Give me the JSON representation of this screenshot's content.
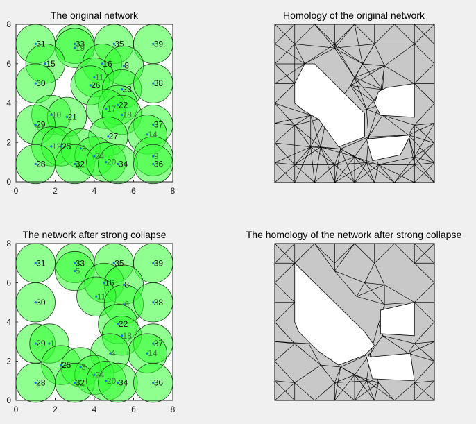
{
  "colors": {
    "background": "#f0f0f0",
    "sensor_fill": "#33ff33",
    "sensor_stroke": "#1f3a1f",
    "complex_fill": "#c8c8c8",
    "hole_fill": "#ffffff",
    "edge": "#000000"
  },
  "chart_data": [
    {
      "type": "scatter",
      "title": "The original network",
      "xlim": [
        0,
        8
      ],
      "ylim": [
        0,
        8
      ],
      "xticks": [
        "0",
        "2",
        "4",
        "6",
        "8"
      ],
      "yticks": [
        "0",
        "2",
        "4",
        "6",
        "8"
      ],
      "sensing_radius": 1,
      "nodes": [
        {
          "id": "31",
          "x": 1.0,
          "y": 7.0
        },
        {
          "id": "33",
          "x": 3.0,
          "y": 7.0
        },
        {
          "id": "19",
          "x": 3.0,
          "y": 6.8,
          "faint": true
        },
        {
          "id": "35",
          "x": 5.0,
          "y": 7.0
        },
        {
          "id": "39",
          "x": 7.0,
          "y": 7.0
        },
        {
          "id": "15",
          "x": 1.5,
          "y": 6.0
        },
        {
          "id": "16",
          "x": 4.4,
          "y": 6.0
        },
        {
          "id": "8",
          "x": 5.5,
          "y": 5.9
        },
        {
          "id": "30",
          "x": 1.0,
          "y": 5.0
        },
        {
          "id": "11",
          "x": 4.0,
          "y": 5.3,
          "faint": true
        },
        {
          "id": "26",
          "x": 3.8,
          "y": 4.9
        },
        {
          "id": "23",
          "x": 5.4,
          "y": 4.7
        },
        {
          "id": "38",
          "x": 7.0,
          "y": 5.0
        },
        {
          "id": "22",
          "x": 5.2,
          "y": 3.9
        },
        {
          "id": "17",
          "x": 4.6,
          "y": 3.7,
          "faint": true
        },
        {
          "id": "18",
          "x": 5.4,
          "y": 3.4,
          "faint": true
        },
        {
          "id": "10",
          "x": 1.8,
          "y": 3.4,
          "faint": true
        },
        {
          "id": "21",
          "x": 2.6,
          "y": 3.3
        },
        {
          "id": "29",
          "x": 1.0,
          "y": 2.9
        },
        {
          "id": "37",
          "x": 7.0,
          "y": 2.9
        },
        {
          "id": "14",
          "x": 6.7,
          "y": 2.4,
          "faint": true
        },
        {
          "id": "27",
          "x": 4.7,
          "y": 2.3
        },
        {
          "id": "12",
          "x": 1.8,
          "y": 1.8,
          "faint": true
        },
        {
          "id": "25",
          "x": 2.3,
          "y": 1.8
        },
        {
          "id": "3",
          "x": 3.3,
          "y": 1.7,
          "faint": true
        },
        {
          "id": "9",
          "x": 7.0,
          "y": 1.3,
          "faint": true
        },
        {
          "id": "24",
          "x": 4.0,
          "y": 1.3,
          "faint": true
        },
        {
          "id": "28",
          "x": 1.0,
          "y": 0.9
        },
        {
          "id": "32",
          "x": 3.0,
          "y": 0.9
        },
        {
          "id": "20",
          "x": 4.6,
          "y": 1.0,
          "faint": true
        },
        {
          "id": "34",
          "x": 5.2,
          "y": 0.9
        },
        {
          "id": "36",
          "x": 7.0,
          "y": 0.9
        }
      ]
    },
    {
      "type": "diagram",
      "title": "Homology of the original network",
      "xlim": [
        0,
        8
      ],
      "ylim": [
        0,
        8
      ],
      "holes": [
        [
          [
            1.0,
            5.0
          ],
          [
            1.5,
            6.0
          ],
          [
            2.0,
            6.0
          ],
          [
            3.0,
            5.0
          ],
          [
            4.5,
            3.5
          ],
          [
            4.5,
            2.3
          ],
          [
            3.2,
            1.8
          ],
          [
            2.2,
            3.2
          ],
          [
            1.5,
            3.6
          ],
          [
            1.0,
            4.0
          ]
        ],
        [
          [
            5.2,
            4.6
          ],
          [
            5.6,
            4.8
          ],
          [
            7.0,
            5.0
          ],
          [
            7.0,
            3.3
          ],
          [
            5.3,
            3.4
          ],
          [
            5.0,
            4.0
          ]
        ],
        [
          [
            4.6,
            2.2
          ],
          [
            6.8,
            2.4
          ],
          [
            6.3,
            1.4
          ],
          [
            4.9,
            1.1
          ]
        ]
      ]
    },
    {
      "type": "scatter",
      "title": "The network after strong collapse",
      "xlim": [
        0,
        8
      ],
      "ylim": [
        0,
        8
      ],
      "xticks": [
        "0",
        "2",
        "4",
        "6",
        "8"
      ],
      "yticks": [
        "0",
        "2",
        "4",
        "6",
        "8"
      ],
      "sensing_radius": 1,
      "nodes": [
        {
          "id": "31",
          "x": 1.0,
          "y": 7.0
        },
        {
          "id": "33",
          "x": 3.0,
          "y": 7.0
        },
        {
          "id": "5",
          "x": 3.0,
          "y": 6.6,
          "faint": true
        },
        {
          "id": "35",
          "x": 5.0,
          "y": 7.0
        },
        {
          "id": "39",
          "x": 7.0,
          "y": 7.0
        },
        {
          "id": "16",
          "x": 4.5,
          "y": 6.0
        },
        {
          "id": "8",
          "x": 5.5,
          "y": 5.9
        },
        {
          "id": "30",
          "x": 1.0,
          "y": 5.0
        },
        {
          "id": "11",
          "x": 4.1,
          "y": 5.3,
          "faint": true
        },
        {
          "id": "6",
          "x": 5.5,
          "y": 4.9,
          "faint": true
        },
        {
          "id": "38",
          "x": 7.0,
          "y": 5.0
        },
        {
          "id": "22",
          "x": 5.2,
          "y": 3.9
        },
        {
          "id": "18",
          "x": 5.4,
          "y": 3.3,
          "faint": true
        },
        {
          "id": "29",
          "x": 1.0,
          "y": 2.9
        },
        {
          "id": "1",
          "x": 1.7,
          "y": 2.9,
          "faint": true
        },
        {
          "id": "37",
          "x": 7.0,
          "y": 2.9
        },
        {
          "id": "14",
          "x": 6.7,
          "y": 2.4,
          "faint": true
        },
        {
          "id": "4",
          "x": 4.8,
          "y": 2.4,
          "faint": true
        },
        {
          "id": "25",
          "x": 2.3,
          "y": 1.8
        },
        {
          "id": "3",
          "x": 3.3,
          "y": 1.7,
          "faint": true
        },
        {
          "id": "24",
          "x": 4.0,
          "y": 1.3,
          "faint": true
        },
        {
          "id": "28",
          "x": 1.0,
          "y": 0.9
        },
        {
          "id": "32",
          "x": 3.0,
          "y": 0.9
        },
        {
          "id": "20",
          "x": 4.6,
          "y": 1.0,
          "faint": true
        },
        {
          "id": "34",
          "x": 5.2,
          "y": 0.9
        },
        {
          "id": "36",
          "x": 7.0,
          "y": 0.9
        }
      ]
    },
    {
      "type": "diagram",
      "title": "The homology of the network after strong collapse",
      "xlim": [
        0,
        8
      ],
      "ylim": [
        0,
        8
      ],
      "holes": [
        [
          [
            1.0,
            7.0
          ],
          [
            2.0,
            6.0
          ],
          [
            3.0,
            5.0
          ],
          [
            4.5,
            3.5
          ],
          [
            5.0,
            2.8
          ],
          [
            4.5,
            2.3
          ],
          [
            3.2,
            1.8
          ],
          [
            2.2,
            2.5
          ],
          [
            1.2,
            3.5
          ],
          [
            1.0,
            4.0
          ]
        ],
        [
          [
            5.3,
            4.6
          ],
          [
            7.0,
            5.0
          ],
          [
            7.0,
            3.3
          ],
          [
            5.3,
            3.4
          ]
        ],
        [
          [
            4.6,
            2.2
          ],
          [
            6.8,
            2.4
          ],
          [
            7.0,
            1.0
          ],
          [
            4.9,
            1.1
          ]
        ]
      ]
    }
  ]
}
